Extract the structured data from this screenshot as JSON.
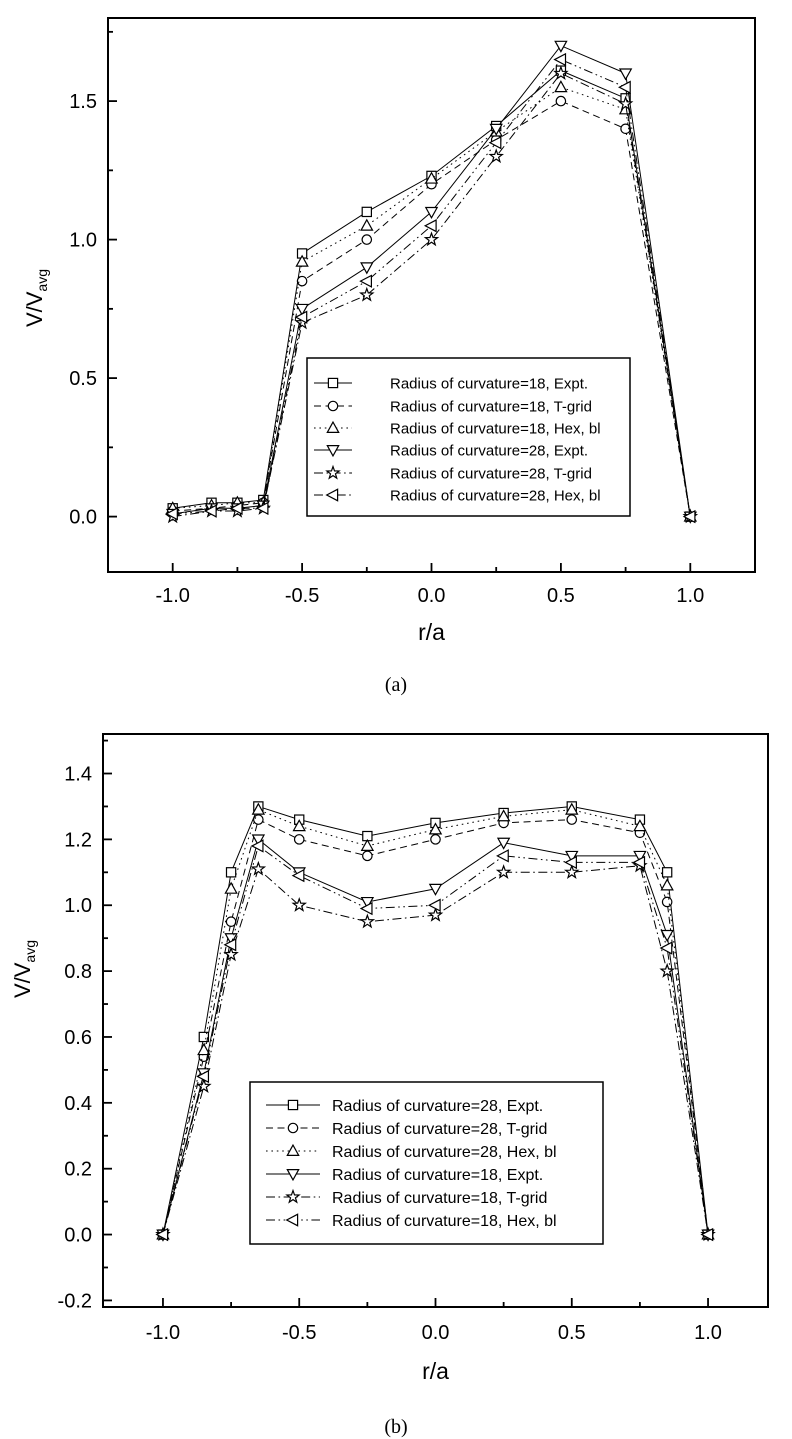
{
  "figure": {
    "captions": {
      "a": "(a)",
      "b": "(b)"
    },
    "ink_color": "#000000",
    "background_color": "#ffffff"
  },
  "chart_data": [
    {
      "id": "a",
      "type": "line",
      "title": "",
      "xlabel": "r/a",
      "ylabel": "V/V",
      "ylabel_sub": "avg",
      "xlim": [
        -1.25,
        1.25
      ],
      "ylim": [
        -0.2,
        1.8
      ],
      "grid": "off",
      "legend_position": "inside lower-right of plot",
      "x_major_ticks": [
        -1.0,
        -0.5,
        0.0,
        0.5,
        1.0
      ],
      "x_tick_labels": [
        "-1.0",
        "-0.5",
        "0.0",
        "0.5",
        "1.0"
      ],
      "x_minor_ticks": [
        -0.75,
        -0.25,
        0.25,
        0.75
      ],
      "y_major_ticks": [
        0.0,
        0.5,
        1.0,
        1.5
      ],
      "y_tick_labels": [
        "0.0",
        "0.5",
        "1.0",
        "1.5"
      ],
      "y_minor_ticks": [
        0.25,
        0.75,
        1.25,
        1.75
      ],
      "x": [
        -1.0,
        -0.85,
        -0.75,
        -0.65,
        -0.5,
        -0.25,
        0.0,
        0.25,
        0.5,
        0.75,
        1.0
      ],
      "series": [
        {
          "name": "Radius of curvature=18, Expt.",
          "marker": "square",
          "line": "solid",
          "values": [
            0.03,
            0.05,
            0.05,
            0.06,
            0.95,
            1.1,
            1.23,
            1.41,
            1.61,
            1.51,
            0.0
          ]
        },
        {
          "name": "Radius of curvature=18, T-grid",
          "marker": "circle",
          "line": "dashed",
          "values": [
            0.02,
            0.03,
            0.04,
            0.05,
            0.85,
            1.0,
            1.2,
            1.36,
            1.5,
            1.4,
            0.0
          ]
        },
        {
          "name": "Radius of curvature=18, Hex, bl",
          "marker": "triangle-up",
          "line": "dotted",
          "values": [
            0.03,
            0.04,
            0.05,
            0.05,
            0.92,
            1.05,
            1.22,
            1.39,
            1.55,
            1.47,
            0.0
          ]
        },
        {
          "name": "Radius of curvature=28, Expt.",
          "marker": "triangle-down",
          "line": "solid",
          "values": [
            0.01,
            0.03,
            0.03,
            0.04,
            0.75,
            0.9,
            1.1,
            1.4,
            1.7,
            1.6,
            0.0
          ]
        },
        {
          "name": "Radius of curvature=28, T-grid",
          "marker": "star",
          "line": "dashdot",
          "values": [
            0.0,
            0.02,
            0.02,
            0.03,
            0.7,
            0.8,
            1.0,
            1.3,
            1.6,
            1.49,
            0.0
          ]
        },
        {
          "name": "Radius of curvature=28, Hex, bl",
          "marker": "triangle-left",
          "line": "dashdotdot",
          "values": [
            0.01,
            0.02,
            0.03,
            0.03,
            0.72,
            0.85,
            1.05,
            1.35,
            1.65,
            1.55,
            0.0
          ]
        }
      ]
    },
    {
      "id": "b",
      "type": "line",
      "title": "",
      "xlabel": "r/a",
      "ylabel": "V/V",
      "ylabel_sub": "avg",
      "xlim": [
        -1.22,
        1.22
      ],
      "ylim": [
        -0.22,
        1.52
      ],
      "grid": "off",
      "legend_position": "inside lower-center of plot",
      "x_major_ticks": [
        -1.0,
        -0.5,
        0.0,
        0.5,
        1.0
      ],
      "x_tick_labels": [
        "-1.0",
        "-0.5",
        "0.0",
        "0.5",
        "1.0"
      ],
      "x_minor_ticks": [
        -0.75,
        -0.25,
        0.25,
        0.75
      ],
      "y_major_ticks": [
        -0.2,
        0.0,
        0.2,
        0.4,
        0.6,
        0.8,
        1.0,
        1.2,
        1.4
      ],
      "y_tick_labels": [
        "-0.2",
        "0.0",
        "0.2",
        "0.4",
        "0.6",
        "0.8",
        "1.0",
        "1.2",
        "1.4"
      ],
      "y_minor_ticks": [
        -0.1,
        0.1,
        0.3,
        0.5,
        0.7,
        0.9,
        1.1,
        1.3,
        1.5
      ],
      "x": [
        -1.0,
        -0.85,
        -0.75,
        -0.65,
        -0.5,
        -0.25,
        0.0,
        0.25,
        0.5,
        0.75,
        0.85,
        1.0
      ],
      "series": [
        {
          "name": "Radius of curvature=28, Expt.",
          "marker": "square",
          "line": "solid",
          "values": [
            0.0,
            0.6,
            1.1,
            1.3,
            1.26,
            1.21,
            1.25,
            1.28,
            1.3,
            1.26,
            1.1,
            0.0
          ]
        },
        {
          "name": "Radius of curvature=28, T-grid",
          "marker": "circle",
          "line": "dashed",
          "values": [
            0.0,
            0.54,
            0.95,
            1.26,
            1.2,
            1.15,
            1.2,
            1.25,
            1.26,
            1.22,
            1.01,
            0.0
          ]
        },
        {
          "name": "Radius of curvature=28, Hex, bl",
          "marker": "triangle-up",
          "line": "dotted",
          "values": [
            0.0,
            0.56,
            1.05,
            1.29,
            1.24,
            1.18,
            1.23,
            1.27,
            1.29,
            1.24,
            1.06,
            0.0
          ]
        },
        {
          "name": "Radius of curvature=18, Expt.",
          "marker": "triangle-down",
          "line": "solid",
          "values": [
            0.0,
            0.49,
            0.9,
            1.2,
            1.1,
            1.01,
            1.05,
            1.19,
            1.15,
            1.15,
            0.91,
            0.0
          ]
        },
        {
          "name": "Radius of curvature=18, T-grid",
          "marker": "star",
          "line": "dashdot",
          "values": [
            0.0,
            0.45,
            0.85,
            1.11,
            1.0,
            0.95,
            0.97,
            1.1,
            1.1,
            1.12,
            0.8,
            0.0
          ]
        },
        {
          "name": "Radius of curvature=18, Hex, bl",
          "marker": "triangle-left",
          "line": "dashdotdot",
          "values": [
            0.0,
            0.48,
            0.88,
            1.18,
            1.09,
            0.99,
            1.0,
            1.15,
            1.13,
            1.13,
            0.87,
            0.0
          ]
        }
      ]
    }
  ]
}
